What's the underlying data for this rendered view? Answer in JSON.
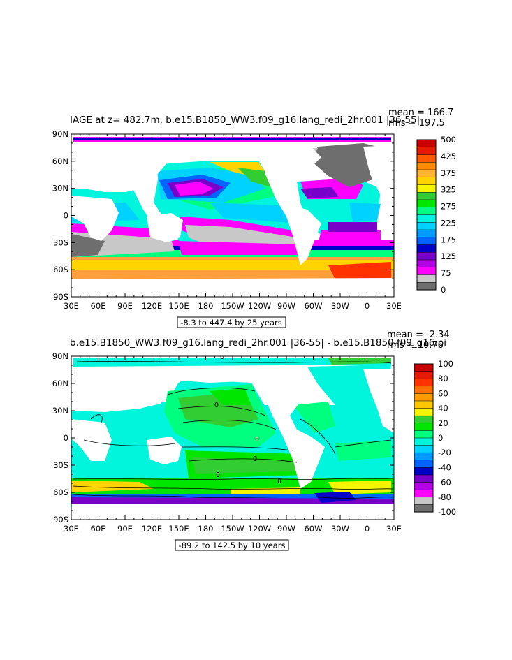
{
  "panels": [
    {
      "title": "IAGE at z= 482.7m, b.e15.B1850_WW3.f09_g16.lang_redi_2hr.001 |36-55|",
      "mean_label": "mean = 166.7",
      "rms_label": "rms = 197.5",
      "contour_info": "-8.3 to 447.4 by 25 years",
      "y_ticks": [
        "90N",
        "60N",
        "30N",
        "0",
        "30S",
        "60S",
        "90S"
      ],
      "x_ticks": [
        "30E",
        "60E",
        "90E",
        "120E",
        "150E",
        "180",
        "150W",
        "120W",
        "90W",
        "60W",
        "30W",
        "0",
        "30E"
      ],
      "colorbar": {
        "labels": [
          "500",
          "425",
          "375",
          "325",
          "275",
          "225",
          "175",
          "125",
          "75",
          "0"
        ],
        "colors": [
          "#c80000",
          "#e41b00",
          "#ff5a00",
          "#ff8c00",
          "#ffb432",
          "#ffd400",
          "#f5f500",
          "#32cd32",
          "#00e600",
          "#00ff7f",
          "#00f5dc",
          "#00d2ff",
          "#009bff",
          "#0064ff",
          "#0000c8",
          "#7800c8",
          "#b400e6",
          "#ff00ff",
          "#c8c8c8",
          "#6e6e6e"
        ]
      },
      "lines": false
    },
    {
      "title": "b.e15.B1850_WW3.f09_g16.lang_redi_2hr.001 |36-55| - b.e15.B1850.f09_g16.pi",
      "mean_label": "mean = -2.34",
      "rms_label": "rms = 10.76",
      "contour_info": "-89.2 to 142.5 by 10 years",
      "y_ticks": [
        "90N",
        "60N",
        "30N",
        "0",
        "30S",
        "60S",
        "90S"
      ],
      "x_ticks": [
        "30E",
        "60E",
        "90E",
        "120E",
        "150E",
        "180",
        "150W",
        "120W",
        "90W",
        "60W",
        "30W",
        "0",
        "30E"
      ],
      "colorbar": {
        "labels": [
          "100",
          "80",
          "60",
          "40",
          "20",
          "0",
          "-20",
          "-40",
          "-60",
          "-80",
          "-100"
        ],
        "colors": [
          "#c80000",
          "#e41b00",
          "#ff3200",
          "#ff6e00",
          "#ff9b00",
          "#ffc800",
          "#f5f500",
          "#32cd32",
          "#00e600",
          "#00ff7f",
          "#00f5dc",
          "#00d2ff",
          "#009bff",
          "#0064ff",
          "#0000c8",
          "#7800c8",
          "#b400e6",
          "#ff00ff",
          "#c8c8c8",
          "#6e6e6e"
        ]
      },
      "lines": true
    }
  ],
  "contour_values": [
    "0",
    "0",
    "0",
    "0",
    "0",
    "0"
  ]
}
